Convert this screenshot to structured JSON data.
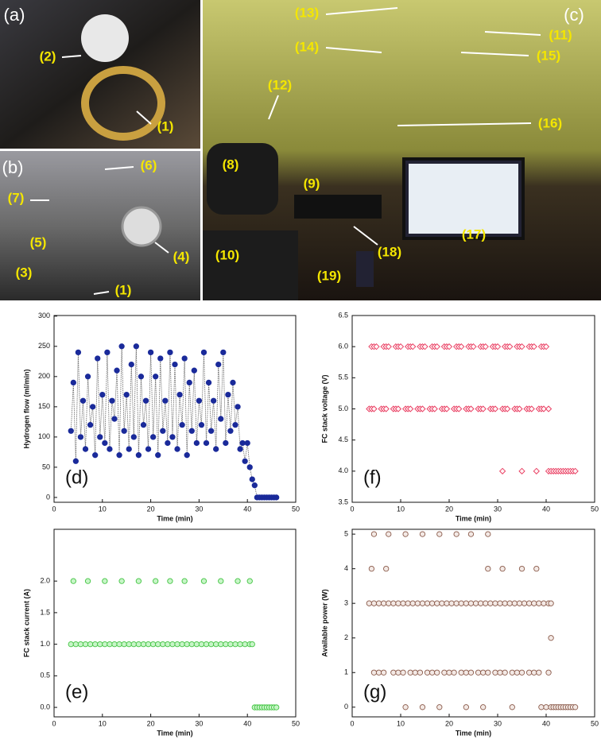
{
  "photo_labels": [
    "(a)",
    "(2)",
    "(1)",
    "(b)",
    "(6)",
    "(7)",
    "(5)",
    "(3)",
    "(4)",
    "(1)",
    "(c)",
    "(13)",
    "(11)",
    "(14)",
    "(15)",
    "(12)",
    "(16)",
    "(8)",
    "(9)",
    "(10)",
    "(18)",
    "(17)",
    "(19)"
  ],
  "chart_data": [
    {
      "type": "scatter",
      "annotation": "(d)",
      "x_label": "Time (min)",
      "y_label": "Hydrogen flow (ml/min)",
      "marker": "circle",
      "color": "#1a2a9a",
      "fill": "#1a2a9a",
      "line": true,
      "line_color": "#666",
      "xlim": [
        0,
        50
      ],
      "xticks": [
        0,
        10,
        20,
        30,
        40,
        50
      ],
      "ylim": [
        -8,
        301
      ],
      "yticks": [
        0,
        50,
        100,
        150,
        200,
        250,
        300
      ],
      "x": [
        3.5,
        4,
        4.5,
        5,
        5.5,
        6,
        6.5,
        7,
        7.5,
        8,
        8.5,
        9,
        9.5,
        10,
        10.5,
        11,
        11.5,
        12,
        12.5,
        13,
        13.5,
        14,
        14.5,
        15,
        15.5,
        16,
        16.5,
        17,
        17.5,
        18,
        18.5,
        19,
        19.5,
        20,
        20.5,
        21,
        21.5,
        22,
        22.5,
        23,
        23.5,
        24,
        24.5,
        25,
        25.5,
        26,
        26.5,
        27,
        27.5,
        28,
        28.5,
        29,
        29.5,
        30,
        30.5,
        31,
        31.5,
        32,
        32.5,
        33,
        33.5,
        34,
        34.5,
        35,
        35.5,
        36,
        36.5,
        37,
        37.5,
        38,
        38.5,
        39,
        39.5,
        40,
        40.5,
        41,
        41.5,
        42,
        42.5,
        43,
        43.5,
        44,
        44.5,
        45,
        45.5,
        46
      ],
      "values": [
        110,
        190,
        60,
        240,
        100,
        160,
        80,
        200,
        120,
        150,
        70,
        230,
        100,
        170,
        90,
        240,
        80,
        160,
        130,
        210,
        70,
        250,
        110,
        170,
        80,
        220,
        100,
        250,
        70,
        200,
        120,
        160,
        80,
        240,
        100,
        200,
        70,
        230,
        110,
        160,
        90,
        240,
        100,
        220,
        80,
        170,
        120,
        230,
        70,
        190,
        110,
        210,
        90,
        160,
        120,
        240,
        90,
        190,
        110,
        160,
        80,
        220,
        130,
        240,
        90,
        170,
        110,
        190,
        120,
        150,
        80,
        90,
        60,
        90,
        50,
        30,
        20,
        0,
        0,
        0,
        0,
        0,
        0,
        0,
        0,
        0
      ]
    },
    {
      "type": "scatter",
      "annotation": "(f)",
      "x_label": "Time (min)",
      "y_label": "FC stack voltage (V)",
      "marker": "diamond",
      "color": "#e8375c",
      "fill": "#fff3f5",
      "line": false,
      "xlim": [
        0,
        50
      ],
      "xticks": [
        0,
        10,
        20,
        30,
        40,
        50
      ],
      "ylim": [
        3.5,
        6.5
      ],
      "yticks": [
        3.5,
        {
          "value": 4,
          "label": "4.0"
        },
        4.5,
        {
          "value": 5,
          "label": "5.0"
        },
        5.5,
        {
          "value": 6,
          "label": "6.0"
        },
        6.5
      ],
      "x": [
        4,
        4.5,
        5,
        6.5,
        7,
        7.5,
        9,
        9.5,
        10,
        11.5,
        12,
        12.5,
        14,
        14.5,
        15,
        16.5,
        17,
        17.5,
        19,
        19.5,
        20,
        21.5,
        22,
        22.5,
        24,
        24.5,
        25,
        26.5,
        27,
        27.5,
        29,
        29.5,
        30,
        31.5,
        32,
        32.5,
        34,
        34.5,
        35,
        36.5,
        37,
        37.5,
        39,
        39.5,
        40,
        3.5,
        4,
        4.5,
        6,
        6.5,
        7,
        8.5,
        9,
        9.5,
        11,
        11.5,
        12,
        13.5,
        14,
        14.5,
        16,
        16.5,
        17,
        18.5,
        19,
        19.5,
        21,
        21.5,
        22,
        23.5,
        24,
        24.5,
        26,
        26.5,
        27,
        28.5,
        29,
        29.5,
        31,
        31.5,
        32,
        33.5,
        34,
        34.5,
        36,
        36.5,
        37,
        38.5,
        39,
        39.5,
        40.5,
        31,
        35,
        38,
        40.5,
        41,
        41.5,
        42,
        42.5,
        43,
        43.5,
        44,
        44.5,
        45,
        45.5,
        46
      ],
      "values": [
        6,
        6,
        6,
        6,
        6,
        6,
        6,
        6,
        6,
        6,
        6,
        6,
        6,
        6,
        6,
        6,
        6,
        6,
        6,
        6,
        6,
        6,
        6,
        6,
        6,
        6,
        6,
        6,
        6,
        6,
        6,
        6,
        6,
        6,
        6,
        6,
        6,
        6,
        6,
        6,
        6,
        6,
        6,
        6,
        6,
        5,
        5,
        5,
        5,
        5,
        5,
        5,
        5,
        5,
        5,
        5,
        5,
        5,
        5,
        5,
        5,
        5,
        5,
        5,
        5,
        5,
        5,
        5,
        5,
        5,
        5,
        5,
        5,
        5,
        5,
        5,
        5,
        5,
        5,
        5,
        5,
        5,
        5,
        5,
        5,
        5,
        5,
        5,
        5,
        5,
        5,
        4,
        4,
        4,
        4,
        4,
        4,
        4,
        4,
        4,
        4,
        4,
        4,
        4,
        4,
        4
      ]
    },
    {
      "type": "scatter",
      "annotation": "(e)",
      "x_label": "Time (min)",
      "y_label": "FC stack current (A)",
      "marker": "circle",
      "color": "#42c442",
      "fill": "#c8f5c8",
      "line": false,
      "xlim": [
        0,
        50
      ],
      "xticks": [
        0,
        10,
        20,
        30,
        40,
        50
      ],
      "ylim": [
        -0.15,
        2.82
      ],
      "yticks": [
        {
          "value": 0,
          "label": "0.0"
        },
        0.5,
        {
          "value": 1,
          "label": "1.0"
        },
        1.5,
        {
          "value": 2,
          "label": "2.0"
        }
      ],
      "x": [
        4,
        7,
        10.5,
        14,
        17.5,
        21,
        24,
        27,
        31,
        34.5,
        38,
        40.5,
        3.5,
        4.5,
        5.5,
        6.5,
        7.5,
        8.5,
        9.5,
        10.5,
        11.5,
        12.5,
        13.5,
        14.5,
        15.5,
        16.5,
        17.5,
        18.5,
        19.5,
        20.5,
        21.5,
        22.5,
        23.5,
        24.5,
        25.5,
        26.5,
        27.5,
        28.5,
        29.5,
        30.5,
        31.5,
        32.5,
        33.5,
        34.5,
        35.5,
        36.5,
        37.5,
        38.5,
        39.5,
        40.5,
        41,
        41.5,
        42,
        42.5,
        43,
        43.5,
        44,
        44.5,
        45,
        45.5,
        46
      ],
      "values": [
        2,
        2,
        2,
        2,
        2,
        2,
        2,
        2,
        2,
        2,
        2,
        2,
        1,
        1,
        1,
        1,
        1,
        1,
        1,
        1,
        1,
        1,
        1,
        1,
        1,
        1,
        1,
        1,
        1,
        1,
        1,
        1,
        1,
        1,
        1,
        1,
        1,
        1,
        1,
        1,
        1,
        1,
        1,
        1,
        1,
        1,
        1,
        1,
        1,
        1,
        1,
        0,
        0,
        0,
        0,
        0,
        0,
        0,
        0,
        0,
        0
      ]
    },
    {
      "type": "scatter",
      "annotation": "(g)",
      "x_label": "Time (min)",
      "y_label": "Available power (W)",
      "marker": "circle",
      "color": "#8a5a4a",
      "fill": "#f3e9e5",
      "line": false,
      "xlim": [
        0,
        50
      ],
      "xticks": [
        0,
        10,
        20,
        30,
        40,
        50
      ],
      "ylim": [
        -0.28,
        5.14
      ],
      "yticks": [
        0,
        1,
        2,
        3,
        4,
        5
      ],
      "x": [
        4.5,
        7.5,
        11,
        14.5,
        18,
        21.5,
        24.5,
        28,
        4,
        7,
        28,
        31,
        35,
        38,
        3.5,
        4.5,
        5.5,
        6.5,
        7.5,
        8.5,
        9.5,
        10.5,
        11.5,
        12.5,
        13.5,
        14.5,
        15.5,
        16.5,
        17.5,
        18.5,
        19.5,
        20.5,
        21.5,
        22.5,
        23.5,
        24.5,
        25.5,
        26.5,
        27.5,
        28.5,
        29.5,
        30.5,
        31.5,
        32.5,
        33.5,
        34.5,
        35.5,
        36.5,
        37.5,
        38.5,
        39.5,
        40.5,
        41,
        41,
        4.5,
        5.5,
        6.5,
        8.5,
        9.5,
        10.5,
        12,
        13,
        14,
        15.5,
        16.5,
        17.5,
        19,
        20,
        21,
        22.5,
        23.5,
        24.5,
        26,
        27,
        28,
        29.5,
        30.5,
        31.5,
        33,
        34,
        35,
        36.5,
        37.5,
        38.5,
        40.5,
        11,
        14.5,
        18,
        23.5,
        27,
        33,
        39,
        40,
        41,
        41.5,
        42,
        42.5,
        43,
        43.5,
        44,
        44.5,
        45,
        45.5,
        46
      ],
      "values": [
        5,
        5,
        5,
        5,
        5,
        5,
        5,
        5,
        4,
        4,
        4,
        4,
        4,
        4,
        3,
        3,
        3,
        3,
        3,
        3,
        3,
        3,
        3,
        3,
        3,
        3,
        3,
        3,
        3,
        3,
        3,
        3,
        3,
        3,
        3,
        3,
        3,
        3,
        3,
        3,
        3,
        3,
        3,
        3,
        3,
        3,
        3,
        3,
        3,
        3,
        3,
        3,
        3,
        2,
        1,
        1,
        1,
        1,
        1,
        1,
        1,
        1,
        1,
        1,
        1,
        1,
        1,
        1,
        1,
        1,
        1,
        1,
        1,
        1,
        1,
        1,
        1,
        1,
        1,
        1,
        1,
        1,
        1,
        1,
        1,
        0,
        0,
        0,
        0,
        0,
        0,
        0,
        0,
        0,
        0,
        0,
        0,
        0,
        0,
        0,
        0,
        0,
        0,
        0
      ]
    }
  ]
}
